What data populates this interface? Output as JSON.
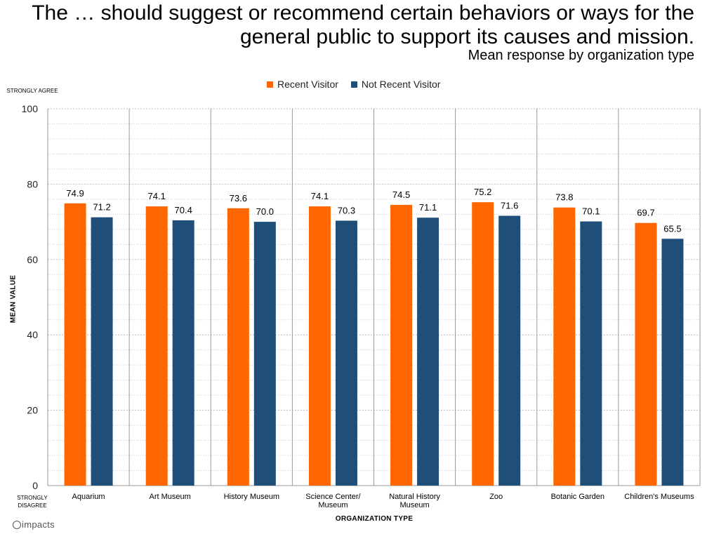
{
  "chart_data": {
    "type": "bar",
    "title": "The … should suggest or recommend certain behaviors or ways for the general public to support its causes and mission.",
    "subtitle": "Mean response by organization type",
    "xlabel": "ORGANIZATION TYPE",
    "ylabel": "MEAN VALUE",
    "y_top_anchor": "STRONGLY AGREE",
    "y_bottom_anchor": "STRONGLY DISAGREE",
    "ylim": [
      0,
      100
    ],
    "yticks": [
      0,
      20,
      40,
      60,
      80,
      100
    ],
    "grid": true,
    "legend_position": "top-center",
    "categories": [
      [
        "Aquarium"
      ],
      [
        "Art Museum"
      ],
      [
        "History Museum"
      ],
      [
        "Science Center/",
        "Museum"
      ],
      [
        "Natural History",
        "Museum"
      ],
      [
        "Zoo"
      ],
      [
        "Botanic Garden"
      ],
      [
        "Children's Museums"
      ]
    ],
    "series": [
      {
        "name": "Recent Visitor",
        "color": "#ff6600",
        "values": [
          74.9,
          74.1,
          73.6,
          74.1,
          74.5,
          75.2,
          73.8,
          69.7
        ]
      },
      {
        "name": "Not Recent Visitor",
        "color": "#1f4e79",
        "values": [
          71.2,
          70.4,
          70.0,
          70.3,
          71.1,
          71.6,
          70.1,
          65.5
        ]
      }
    ]
  },
  "branding": {
    "logo_text": "impacts"
  }
}
